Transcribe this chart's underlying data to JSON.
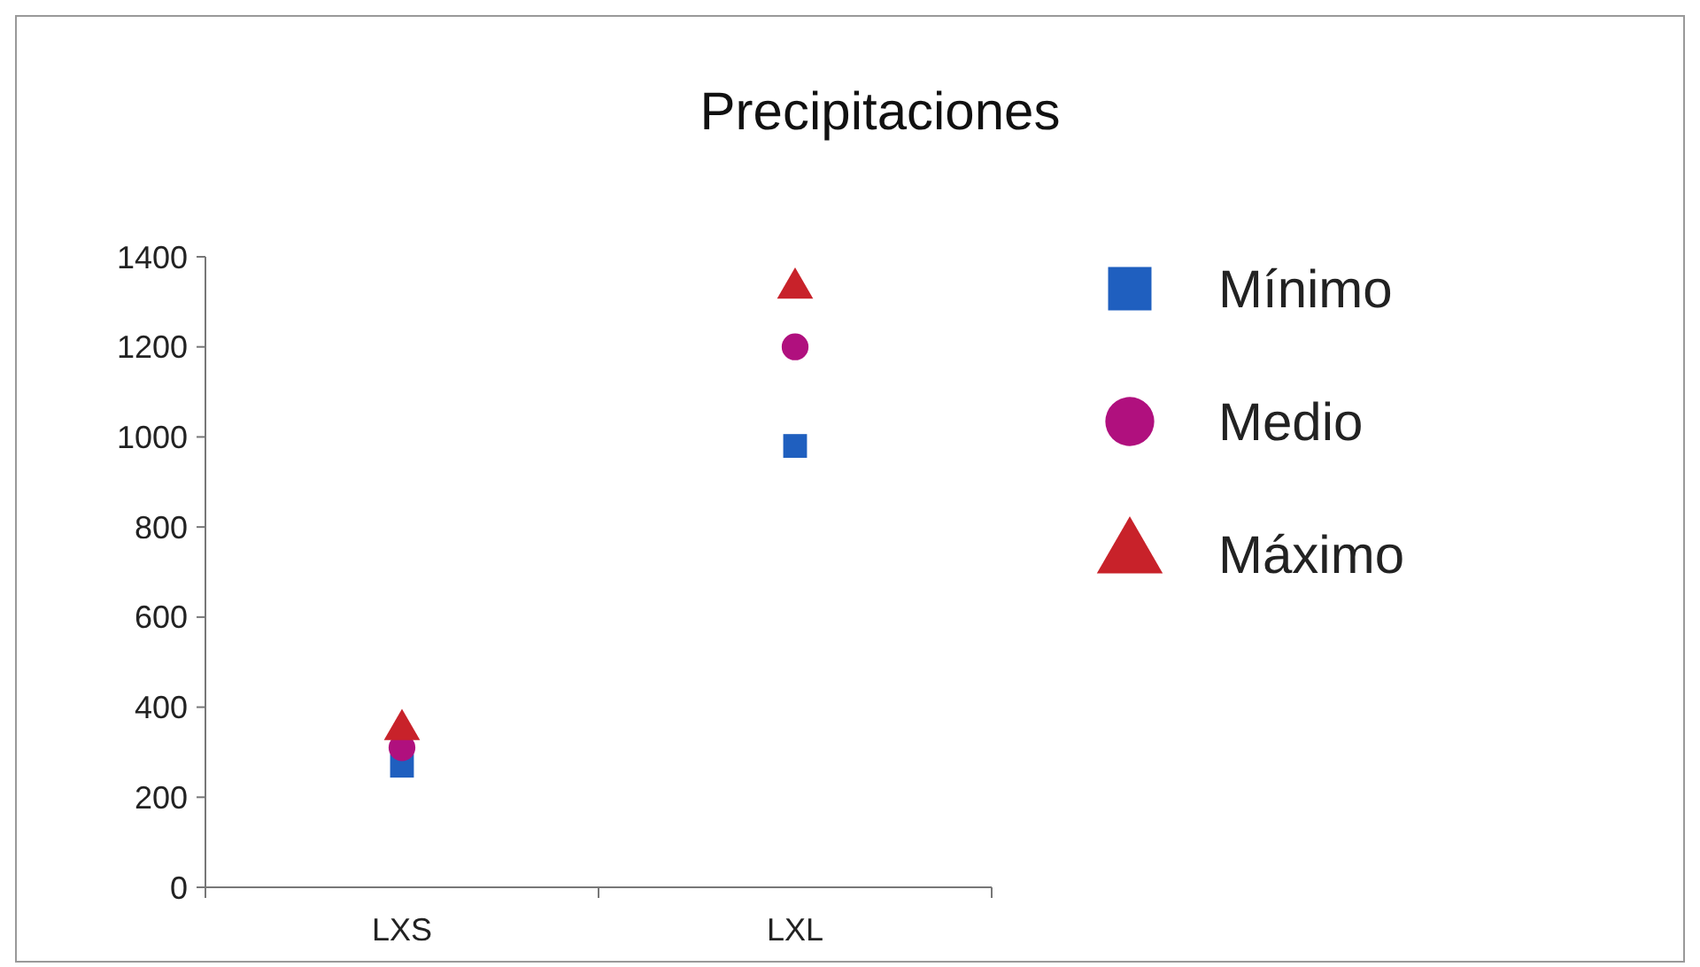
{
  "chart_data": {
    "type": "scatter",
    "title": "Precipitaciones",
    "categories": [
      "LXS",
      "LXL"
    ],
    "series": [
      {
        "name": "Mínimo",
        "color": "#1f5fbf",
        "marker": "square",
        "values": [
          270,
          980
        ]
      },
      {
        "name": "Medio",
        "color": "#b0107e",
        "marker": "circle",
        "values": [
          310,
          1200
        ]
      },
      {
        "name": "Máximo",
        "color": "#c8222a",
        "marker": "triangle",
        "values": [
          350,
          1330
        ]
      }
    ],
    "ylim": [
      0,
      1400
    ],
    "yticks": [
      0,
      200,
      400,
      600,
      800,
      1000,
      1200,
      1400
    ],
    "grid": false,
    "legend": "right"
  }
}
